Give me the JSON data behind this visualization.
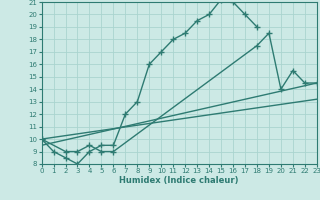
{
  "bg_color": "#cce9e5",
  "grid_color": "#aad4cf",
  "line_color": "#2e7b72",
  "marker": "+",
  "markersize": 4,
  "linewidth": 1.0,
  "xlabel": "Humidex (Indice chaleur)",
  "xlim": [
    0,
    23
  ],
  "ylim": [
    8,
    21
  ],
  "xticks": [
    0,
    1,
    2,
    3,
    4,
    5,
    6,
    7,
    8,
    9,
    10,
    11,
    12,
    13,
    14,
    15,
    16,
    17,
    18,
    19,
    20,
    21,
    22,
    23
  ],
  "yticks": [
    8,
    9,
    10,
    11,
    12,
    13,
    14,
    15,
    16,
    17,
    18,
    19,
    20,
    21
  ],
  "curve1_x": [
    0,
    1,
    2,
    3,
    4,
    5,
    6,
    7,
    8,
    9,
    10,
    11,
    12,
    13,
    14,
    15,
    16,
    17,
    18
  ],
  "curve1_y": [
    10,
    9,
    8.5,
    8,
    9,
    9.5,
    9.5,
    12,
    13,
    16,
    17,
    18,
    18.5,
    19.5,
    20,
    21.2,
    21,
    20,
    19
  ],
  "curve2_x": [
    0,
    2,
    3,
    4,
    5,
    6,
    18,
    19,
    20,
    21,
    22,
    23
  ],
  "curve2_y": [
    10,
    9,
    9,
    9.5,
    9,
    9,
    17.5,
    18.5,
    14,
    15.5,
    14.5,
    14.5
  ],
  "curve3_x": [
    0,
    23
  ],
  "curve3_y": [
    9.5,
    14.5
  ],
  "curve4_x": [
    0,
    23
  ],
  "curve4_y": [
    10.0,
    13.2
  ]
}
